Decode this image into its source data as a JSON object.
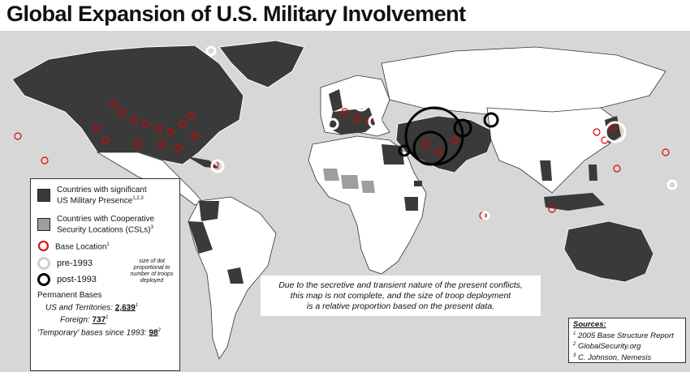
{
  "title": "Global Expansion of U.S. Military Involvement",
  "colors": {
    "ocean": "#d7d7d7",
    "significant_presence": "#3a3a3a",
    "cooperative_csl": "#9e9e9e",
    "other_land": "#ffffff",
    "base_location": "#e00000",
    "pre_1993": "#ffffff",
    "post_1993": "#000000"
  },
  "legend": {
    "significant": {
      "label_line1": "Countries with significant",
      "label_line2": "US Military Presence",
      "sup": "1,2,3"
    },
    "cooperative": {
      "label_line1": "Countries with Cooperative",
      "label_line2": "Security Locations (CSLs)",
      "sup": "3"
    },
    "base_location": {
      "label": "Base Location",
      "sup": "1"
    },
    "pre_1993": {
      "label": "pre-1993"
    },
    "post_1993": {
      "label": "post-1993"
    },
    "size_note": "size of dot proportional to number of troops deployed",
    "permanent_bases": {
      "heading": "Permanent Bases",
      "us_label": "US and Territories:",
      "us_value": "2,639",
      "us_sup": "1",
      "foreign_label": "Foreign:",
      "foreign_value": "737",
      "foreign_sup": "1",
      "temporary_label": "'Temporary' bases since 1993:",
      "temporary_value": "98",
      "temporary_sup": "2"
    }
  },
  "note": {
    "line1": "Due to the secretive and transient nature of the present conflicts,",
    "line2": "this map is not complete, and the size of troop deployment",
    "line3": "is a relative proportion based on the present data."
  },
  "sources": {
    "heading": "Sources:",
    "items": [
      {
        "sup": "1",
        "text": "2005 Base Structure Report"
      },
      {
        "sup": "2",
        "text": "GlobalSecurity.org"
      },
      {
        "sup": "3",
        "text": "C. Johnson, Nemesis"
      }
    ]
  }
}
